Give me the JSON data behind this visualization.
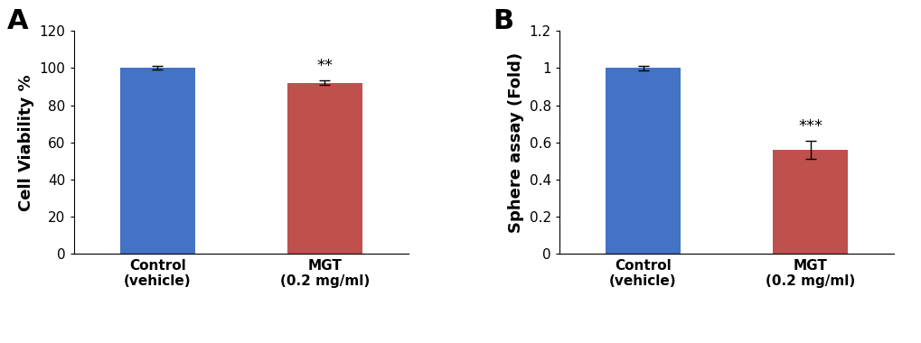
{
  "panel_A": {
    "categories": [
      "Control\n(vehicle)",
      "MGT\n(0.2 mg/ml)"
    ],
    "values": [
      100,
      92
    ],
    "errors": [
      1.0,
      1.2
    ],
    "bar_colors": [
      "#4472C4",
      "#C0504D"
    ],
    "ylabel": "Cell Viability %",
    "ylim": [
      0,
      120
    ],
    "yticks": [
      0,
      20,
      40,
      60,
      80,
      100,
      120
    ],
    "significance": [
      "",
      "**"
    ],
    "sig_fontsize": 13,
    "label": "A"
  },
  "panel_B": {
    "categories": [
      "Control\n(vehicle)",
      "MGT\n(0.2 mg/ml)"
    ],
    "values": [
      1.0,
      0.56
    ],
    "errors": [
      0.012,
      0.048
    ],
    "bar_colors": [
      "#4472C4",
      "#C0504D"
    ],
    "ylabel": "Sphere assay (Fold)",
    "ylim": [
      0,
      1.2
    ],
    "yticks": [
      0,
      0.2,
      0.4,
      0.6,
      0.8,
      1.0,
      1.2
    ],
    "significance": [
      "",
      "***"
    ],
    "sig_fontsize": 13,
    "label": "B"
  },
  "background_color": "#ffffff",
  "bar_width": 0.45,
  "label_fontsize": 13,
  "tick_fontsize": 11,
  "panel_label_fontsize": 22
}
